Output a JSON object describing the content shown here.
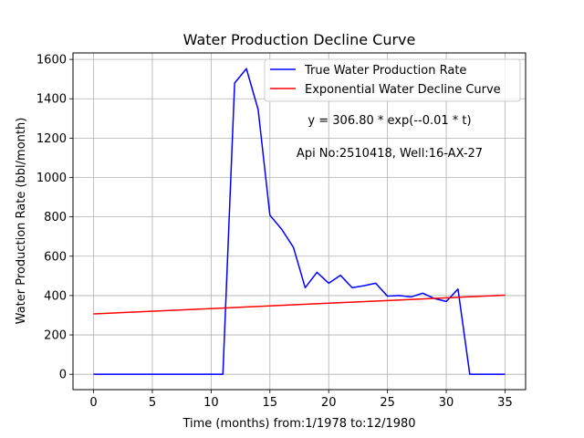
{
  "chart_data": {
    "type": "line",
    "title": "Water Production Decline Curve",
    "xlabel": "Time (months) from:1/1978 to:12/1980",
    "ylabel": "Water Production Rate (bbl/month)",
    "xlim": [
      -1.75,
      36.75
    ],
    "ylim": [
      -78,
      1633
    ],
    "xticks": [
      0,
      5,
      10,
      15,
      20,
      25,
      30,
      35
    ],
    "yticks": [
      0,
      200,
      400,
      600,
      800,
      1000,
      1200,
      1400,
      1600
    ],
    "grid": true,
    "legend_position": "top-right",
    "annotations": [
      "y = 306.80 * exp(--0.01 * t)",
      "Api No:2510418, Well:16-AX-27"
    ],
    "series": [
      {
        "name": "True Water Production Rate",
        "color": "#0000ff",
        "x": [
          0,
          1,
          2,
          3,
          4,
          5,
          6,
          7,
          8,
          9,
          10,
          11,
          12,
          13,
          14,
          15,
          16,
          17,
          18,
          19,
          20,
          21,
          22,
          23,
          24,
          25,
          26,
          27,
          28,
          29,
          30,
          31,
          32,
          33,
          34,
          35
        ],
        "values": [
          0,
          0,
          0,
          0,
          0,
          0,
          0,
          0,
          0,
          0,
          0,
          0,
          1480,
          1553,
          1345,
          808,
          737,
          645,
          440,
          518,
          463,
          503,
          440,
          450,
          463,
          397,
          400,
          393,
          412,
          385,
          370,
          433,
          0,
          0,
          0,
          0
        ]
      },
      {
        "name": "Exponential Water Decline Curve",
        "color": "#ff0000",
        "x": [
          0,
          35
        ],
        "values": [
          306.8,
          402
        ]
      }
    ]
  }
}
